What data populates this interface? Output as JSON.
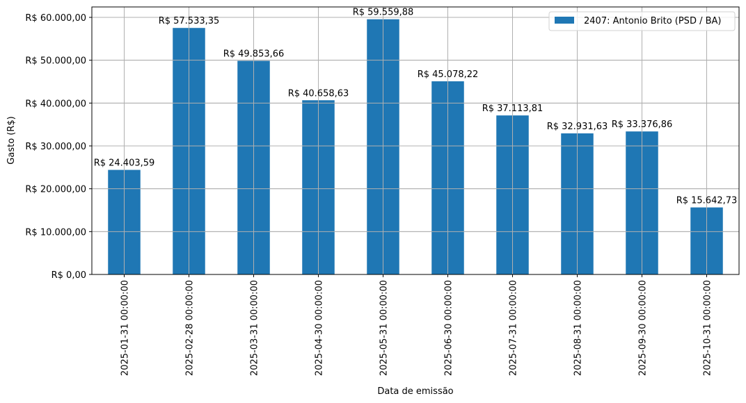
{
  "chart_data": {
    "type": "bar",
    "title": "",
    "xlabel": "Data de emissão",
    "ylabel": "Gasto (R$)",
    "ylim": [
      0,
      62500
    ],
    "grid": true,
    "legend_position": "upper right",
    "bar_color": "#1f77b4",
    "categories": [
      "2025-01-31 00:00:00",
      "2025-02-28 00:00:00",
      "2025-03-31 00:00:00",
      "2025-04-30 00:00:00",
      "2025-05-31 00:00:00",
      "2025-06-30 00:00:00",
      "2025-07-31 00:00:00",
      "2025-08-31 00:00:00",
      "2025-09-30 00:00:00",
      "2025-10-31 00:00:00"
    ],
    "series": [
      {
        "name": "2407: Antonio Brito (PSD / BA)",
        "values": [
          24403.59,
          57533.35,
          49853.66,
          40658.63,
          59559.88,
          45078.22,
          37113.81,
          32931.63,
          33376.86,
          15642.73
        ]
      }
    ],
    "data_labels": [
      "R$ 24.403,59",
      "R$ 57.533,35",
      "R$ 49.853,66",
      "R$ 40.658,63",
      "R$ 59.559,88",
      "R$ 45.078,22",
      "R$ 37.113,81",
      "R$ 32.931,63",
      "R$ 33.376,86",
      "R$ 15.642,73"
    ],
    "y_ticks": [
      0,
      10000,
      20000,
      30000,
      40000,
      50000,
      60000
    ],
    "y_tick_labels": [
      "R$ 0,00",
      "R$ 10.000,00",
      "R$ 20.000,00",
      "R$ 30.000,00",
      "R$ 40.000,00",
      "R$ 50.000,00",
      "R$ 60.000,00"
    ]
  }
}
